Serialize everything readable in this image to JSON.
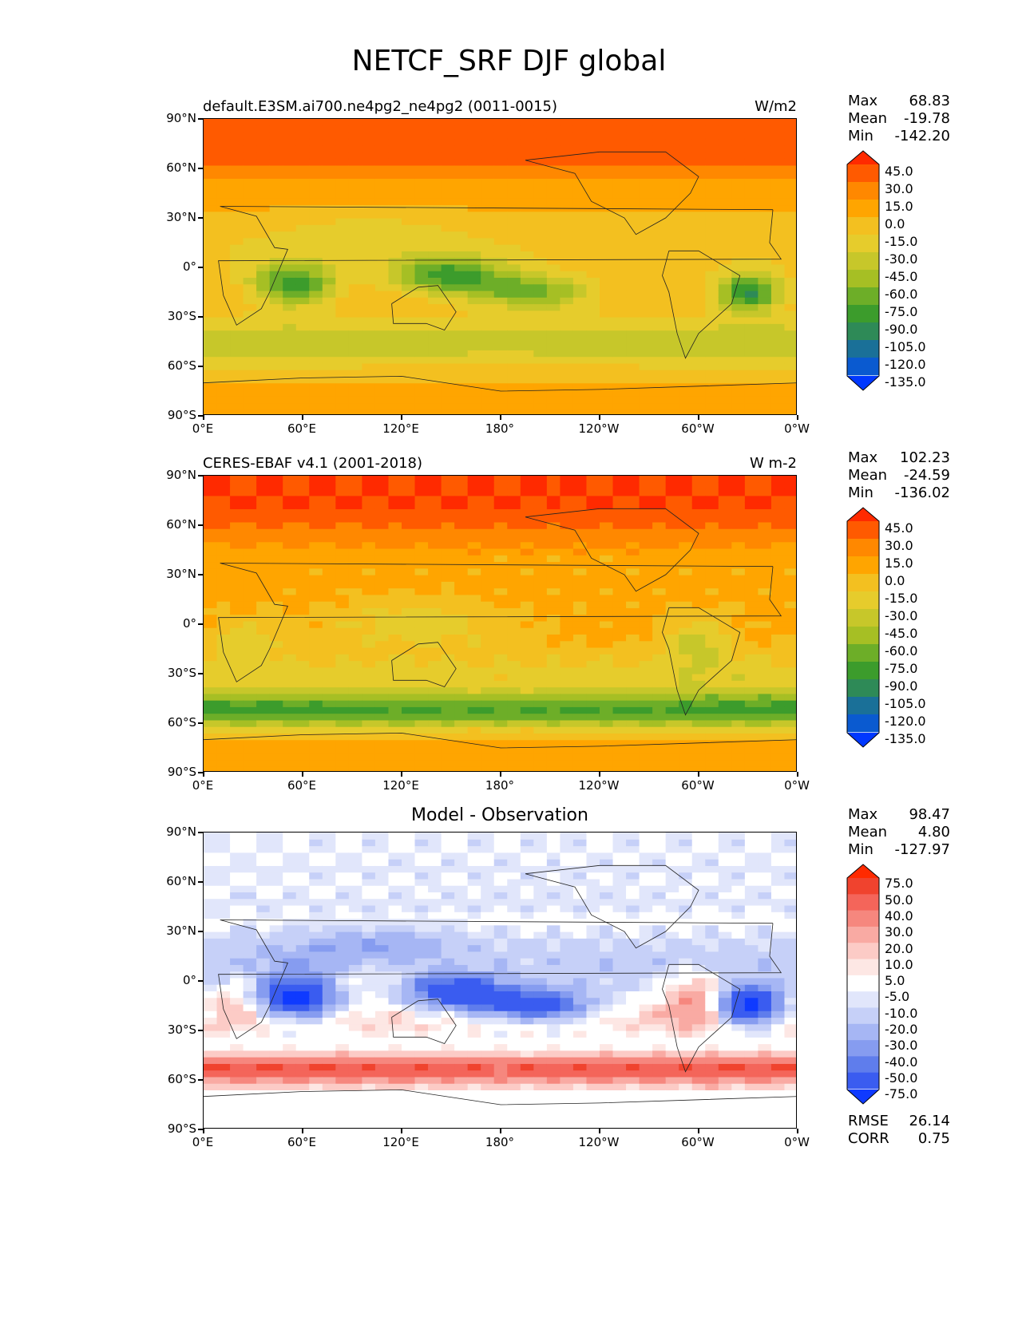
{
  "title": "NETCF_SRF DJF global",
  "axes": {
    "lat_labels": [
      "90°N",
      "60°N",
      "30°N",
      "0°",
      "30°S",
      "60°S",
      "90°S"
    ],
    "lon_labels": [
      "0°E",
      "60°E",
      "120°E",
      "180°",
      "120°W",
      "60°W",
      "0°W"
    ]
  },
  "panels": [
    {
      "title_left": "default.E3SM.ai700.ne4pg2_ne4pg2 (0011-0015)",
      "title_right": "W/m2",
      "title_center": "",
      "stats": [
        {
          "label": "Max",
          "value": "68.83"
        },
        {
          "label": "Mean",
          "value": "-19.78"
        },
        {
          "label": "Min",
          "value": "-142.20"
        }
      ],
      "colorbar_labels": [
        "45.0",
        "30.0",
        "15.0",
        "0.0",
        "-15.0",
        "-30.0",
        "-45.0",
        "-60.0",
        "-75.0",
        "-90.0",
        "-105.0",
        "-120.0",
        "-135.0"
      ]
    },
    {
      "title_left": "CERES-EBAF v4.1 (2001-2018)",
      "title_right": "W m-2",
      "title_center": "",
      "stats": [
        {
          "label": "Max",
          "value": "102.23"
        },
        {
          "label": "Mean",
          "value": "-24.59"
        },
        {
          "label": "Min",
          "value": "-136.02"
        }
      ],
      "colorbar_labels": [
        "45.0",
        "30.0",
        "15.0",
        "0.0",
        "-15.0",
        "-30.0",
        "-45.0",
        "-60.0",
        "-75.0",
        "-90.0",
        "-105.0",
        "-120.0",
        "-135.0"
      ]
    },
    {
      "title_left": "",
      "title_right": "",
      "title_center": "Model - Observation",
      "stats": [
        {
          "label": "Max",
          "value": "98.47"
        },
        {
          "label": "Mean",
          "value": "4.80"
        },
        {
          "label": "Min",
          "value": "-127.97"
        }
      ],
      "colorbar_labels": [
        "75.0",
        "50.0",
        "40.0",
        "30.0",
        "20.0",
        "10.0",
        "5.0",
        "-5.0",
        "-10.0",
        "-20.0",
        "-30.0",
        "-40.0",
        "-50.0",
        "-75.0"
      ],
      "metrics": [
        {
          "label": "RMSE",
          "value": "26.14"
        },
        {
          "label": "CORR",
          "value": "0.75"
        }
      ]
    }
  ],
  "colors": {
    "field_scale": [
      "#ff2a00",
      "#ff5a00",
      "#ff8800",
      "#ffa500",
      "#f3c020",
      "#e6cc2c",
      "#c7c72a",
      "#a6bf24",
      "#6dae28",
      "#3c9c2c",
      "#2e8a57",
      "#1a7098",
      "#0a5ad0",
      "#0038ff"
    ],
    "diff_scale": [
      "#ff2a00",
      "#f0432e",
      "#f4655a",
      "#f6877e",
      "#f9aaa3",
      "#fccbc6",
      "#fde7e4",
      "#ffffff",
      "#e1e6fb",
      "#c6d0f8",
      "#a6b6f4",
      "#869cf0",
      "#5f7dec",
      "#3a5cf0",
      "#0f3aff"
    ]
  },
  "chart_data": [
    {
      "type": "heatmap",
      "title": "default.E3SM.ai700.ne4pg2_ne4pg2 (0011-0015)",
      "units": "W/m2",
      "x_range": [
        0,
        360
      ],
      "y_range": [
        -90,
        90
      ],
      "levels": [
        -135,
        -120,
        -105,
        -90,
        -75,
        -60,
        -45,
        -30,
        -15,
        0,
        15,
        30,
        45
      ],
      "stats": {
        "max": 68.83,
        "mean": -19.78,
        "min": -142.2
      }
    },
    {
      "type": "heatmap",
      "title": "CERES-EBAF v4.1 (2001-2018)",
      "units": "W m-2",
      "x_range": [
        0,
        360
      ],
      "y_range": [
        -90,
        90
      ],
      "levels": [
        -135,
        -120,
        -105,
        -90,
        -75,
        -60,
        -45,
        -30,
        -15,
        0,
        15,
        30,
        45
      ],
      "stats": {
        "max": 102.23,
        "mean": -24.59,
        "min": -136.02
      }
    },
    {
      "type": "heatmap",
      "title": "Model - Observation",
      "x_range": [
        0,
        360
      ],
      "y_range": [
        -90,
        90
      ],
      "levels": [
        -75,
        -50,
        -40,
        -30,
        -20,
        -10,
        -5,
        5,
        10,
        20,
        30,
        40,
        50,
        75
      ],
      "stats": {
        "max": 98.47,
        "mean": 4.8,
        "min": -127.97,
        "rmse": 26.14,
        "corr": 0.75
      }
    }
  ]
}
